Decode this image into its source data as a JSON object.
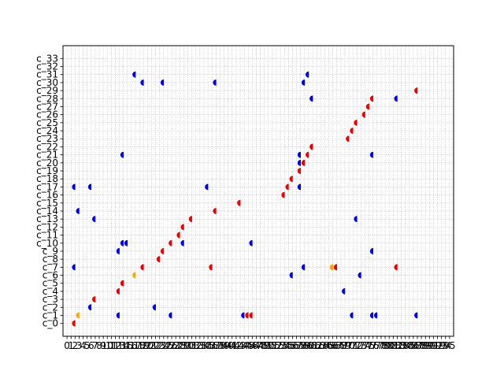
{
  "chart_data": {
    "type": "scatter",
    "marker": "left-half-circle",
    "grid": true,
    "grid_style": "dotted",
    "xlim": [
      -1,
      96
    ],
    "ylim": [
      -1.6,
      34.6
    ],
    "x_ticks": [
      0,
      1,
      2,
      3,
      4,
      5,
      6,
      7,
      8,
      9,
      10,
      11,
      12,
      13,
      14,
      15,
      16,
      17,
      18,
      19,
      20,
      21,
      22,
      23,
      24,
      25,
      26,
      27,
      28,
      29,
      30,
      31,
      32,
      33,
      34,
      35,
      36,
      37,
      38,
      39,
      40,
      41,
      42,
      43,
      44,
      45,
      46,
      47,
      48,
      49,
      50,
      51,
      52,
      53,
      54,
      55,
      56,
      57,
      58,
      59,
      60,
      61,
      62,
      63,
      64,
      65,
      66,
      67,
      68,
      69,
      70,
      71,
      72,
      73,
      74,
      75,
      76,
      77,
      78,
      79,
      80,
      81,
      82,
      83,
      84,
      85,
      86,
      87,
      88,
      89,
      90,
      91,
      92,
      93,
      94,
      95
    ],
    "x_tick_labels": [
      "0",
      "1",
      "2",
      "3",
      "4",
      "5",
      "6",
      "7",
      "8",
      "9",
      "10",
      "11",
      "12",
      "13",
      "14",
      "15",
      "16",
      "17",
      "18",
      "19",
      "20",
      "21",
      "22",
      "23",
      "24",
      "25",
      "26",
      "27",
      "28",
      "29",
      "30",
      "31",
      "32",
      "33",
      "34",
      "35",
      "36",
      "37",
      "38",
      "39",
      "40",
      "41",
      "42",
      "43",
      "44",
      "45",
      "46",
      "47",
      "48",
      "49",
      "50",
      "51",
      "52",
      "53",
      "54",
      "55",
      "56",
      "57",
      "58",
      "59",
      "60",
      "61",
      "62",
      "63",
      "64",
      "65",
      "66",
      "67",
      "68",
      "69",
      "70",
      "71",
      "72",
      "73",
      "74",
      "75",
      "76",
      "77",
      "78",
      "79",
      "80",
      "81",
      "82",
      "83",
      "84",
      "85",
      "86",
      "87",
      "88",
      "89",
      "90",
      "91",
      "92",
      "93",
      "94",
      "95"
    ],
    "y_tick_labels": [
      "c_0",
      "c_1",
      "c_2",
      "c_3",
      "c_4",
      "c_5",
      "c_6",
      "c_7",
      "c_8",
      "c_9",
      "c_10",
      "c_11",
      "c_12",
      "c_13",
      "c_14",
      "c_15",
      "c_16",
      "c_17",
      "c_18",
      "c_19",
      "c_20",
      "c_21",
      "c_22",
      "c_23",
      "c_24",
      "c_25",
      "c_26",
      "c_27",
      "c_28",
      "c_29",
      "c_30",
      "c_31",
      "c_32",
      "c_33"
    ],
    "colors": {
      "red": "#ee0000",
      "blue": "#0000ee",
      "orange": "#ffa500"
    },
    "series": [
      {
        "color": "red",
        "points": [
          [
            2,
            0
          ],
          [
            7,
            3
          ],
          [
            13,
            4
          ],
          [
            14,
            5
          ],
          [
            19,
            7
          ],
          [
            23,
            8
          ],
          [
            24,
            9
          ],
          [
            26,
            10
          ],
          [
            28,
            11
          ],
          [
            29,
            12
          ],
          [
            31,
            13
          ],
          [
            36,
            7
          ],
          [
            37,
            14
          ],
          [
            43,
            15
          ],
          [
            45,
            1
          ],
          [
            46,
            1
          ],
          [
            54,
            16
          ],
          [
            55,
            17
          ],
          [
            56,
            18
          ],
          [
            58,
            19
          ],
          [
            59,
            20
          ],
          [
            60,
            21
          ],
          [
            61,
            22
          ],
          [
            67,
            7
          ],
          [
            70,
            23
          ],
          [
            71,
            24
          ],
          [
            72,
            25
          ],
          [
            74,
            26
          ],
          [
            75,
            27
          ],
          [
            76,
            28
          ],
          [
            82,
            7
          ],
          [
            87,
            29
          ]
        ]
      },
      {
        "color": "blue",
        "points": [
          [
            2,
            7
          ],
          [
            3,
            14
          ],
          [
            6,
            2
          ],
          [
            7,
            13
          ],
          [
            13,
            1
          ],
          [
            14,
            10
          ],
          [
            15,
            10
          ],
          [
            14,
            21
          ],
          [
            17,
            31
          ],
          [
            19,
            30
          ],
          [
            24,
            30
          ],
          [
            26,
            1
          ],
          [
            29,
            10
          ],
          [
            37,
            30
          ],
          [
            35,
            17
          ],
          [
            44,
            1
          ],
          [
            46,
            10
          ],
          [
            56,
            6
          ],
          [
            58,
            17
          ],
          [
            58,
            20
          ],
          [
            58,
            21
          ],
          [
            59,
            30
          ],
          [
            59,
            7
          ],
          [
            60,
            31
          ],
          [
            61,
            28
          ],
          [
            69,
            4
          ],
          [
            71,
            1
          ],
          [
            72,
            13
          ],
          [
            73,
            6
          ],
          [
            76,
            1
          ],
          [
            77,
            1
          ],
          [
            76,
            9
          ],
          [
            76,
            21
          ],
          [
            82,
            28
          ],
          [
            87,
            1
          ],
          [
            2,
            17
          ],
          [
            6,
            17
          ],
          [
            13,
            9
          ],
          [
            22,
            2
          ]
        ]
      },
      {
        "color": "orange",
        "points": [
          [
            3,
            1
          ],
          [
            17,
            6
          ],
          [
            66,
            7
          ]
        ]
      }
    ]
  }
}
